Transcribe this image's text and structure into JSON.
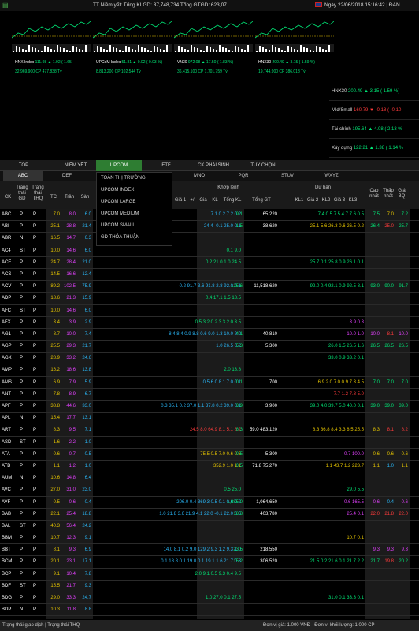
{
  "topbar": {
    "market": "TT Niêm yết: Tổng KLGD: 37,748,734    Tổng GTGD: 623,07",
    "datetime": "Ngày  22/06/2018 15:16:42  |  ĐĂN"
  },
  "indices": [
    {
      "name": "HNX Index",
      "value": "111.98",
      "chg": "▲ 1.92 ( 1.65",
      "stats": "32,969,900 CP 477.838 Tỷ"
    },
    {
      "name": "UPCoM Index",
      "value": "51.81",
      "chg": "▲ 0.02 ( 0.03 %)",
      "stats": "8,813,200 CP 102.544 Tỷ"
    },
    {
      "name": "VN30",
      "value": "972.08",
      "chg": "▲ 17.50 ( 1.83 %)",
      "stats": "36,415,100 CP 1,701.759 Tỷ"
    },
    {
      "name": "HNX30",
      "value": "200.49",
      "chg": "▲ 3.15 ( 1.59 %)",
      "stats": "19,744,900 CP 386.018 Tỷ"
    }
  ],
  "sidepanel": [
    {
      "name": "HNX30",
      "value": "200.49",
      "chg": "▲ 3.15 ( 1.59 %)"
    },
    {
      "name": "Mid/Small",
      "value": "160.79",
      "chg": "▼ -0.18 ( -0.10"
    },
    {
      "name": "Tài chính",
      "value": "195.64",
      "chg": "▲ 4.08 ( 2.13 %"
    },
    {
      "name": "Xây dựng",
      "value": "122.21",
      "chg": "▲ 1.38 ( 1.14 %"
    }
  ],
  "tabs": [
    "TOP",
    "NIÊM YẾT",
    "UPCOM",
    "ETF",
    "CK PHÁI SINH",
    "TÙY CHỌN"
  ],
  "subtabs": [
    "ABC",
    "DEF",
    "GHI",
    "JKL",
    "MNO",
    "PQR",
    "STUV",
    "WXYZ"
  ],
  "dropdown": [
    "TOÀN THỊ TRƯỜNG",
    "UPCOM INDEX",
    "UPCOM LARGE",
    "UPCOM MEDIUM",
    "UPCOM SMALL",
    "GD THỎA THUẬN"
  ],
  "header": {
    "ck": "CK",
    "tt1": "Trạng thái GD",
    "tt2": "Trạng thái THQ",
    "tc": "TC",
    "tran": "Trần",
    "san": "Sàn",
    "gia1": "Giá 1",
    "pm": "+/-",
    "gia": "Giá",
    "kl": "KL",
    "tongkl": "Tổng KL",
    "tonggt": "Tổng GT",
    "khop": "Khớp lệnh",
    "duban": "Dư bán",
    "kl1": "KL1",
    "gia2": "Giá 2",
    "kl2": "KL2",
    "gia3": "Giá 3",
    "kl3": "KL3",
    "cao": "Cao nhất",
    "thap": "Thấp nhất",
    "tb": "Giá BQ"
  },
  "rows": [
    {
      "ck": "ABC",
      "a": "P",
      "b": "P",
      "tc": "7.0",
      "tr": "8.0",
      "sa": "6.0",
      "mid": "7.1   0.2   7.2 0.2",
      "kl": "9.1",
      "gt": "65,220",
      "ask": "7.4  0.5  7.5  4.7  7.6  0.5",
      "hi": "7.5",
      "lo": "7.0",
      "tb": "7.2"
    },
    {
      "ck": "ABI",
      "a": "P",
      "b": "P",
      "tc": "25.1",
      "tr": "28.8",
      "sa": "21.4",
      "mid": "24.4 -0.1 25.0 0.1",
      "kl": "1.5",
      "gt": "38,620",
      "ask": "25.1  5.6 26.3  0.6 26.5  0.2",
      "hi": "26.4",
      "lo": "25.0",
      "tb": "25.7"
    },
    {
      "ck": "ABR",
      "a": "N",
      "b": "P",
      "tc": "16.5",
      "tr": "14.7",
      "sa": "6.3",
      "mid": "",
      "kl": "",
      "gt": "",
      "ask": "",
      "hi": "",
      "lo": "",
      "tb": ""
    },
    {
      "ck": "AC4",
      "a": "ST",
      "b": "P",
      "tc": "10.0",
      "tr": "14.6",
      "sa": "6.0",
      "mid": "0.1  9.0",
      "kl": "",
      "gt": "",
      "ask": "",
      "hi": "",
      "lo": "",
      "tb": ""
    },
    {
      "ck": "ACE",
      "a": "P",
      "b": "P",
      "tc": "24.7",
      "tr": "28.4",
      "sa": "21.0",
      "mid": "0.2 21.0  1.0 24.5",
      "kl": "",
      "gt": "",
      "ask": "25.7  0.1 25.8  0.9 26.1  0.1",
      "hi": "",
      "lo": "",
      "tb": ""
    },
    {
      "ck": "ACS",
      "a": "P",
      "b": "P",
      "tc": "14.5",
      "tr": "16.6",
      "sa": "12.4",
      "mid": "",
      "kl": "",
      "gt": "",
      "ask": "",
      "hi": "",
      "lo": "",
      "tb": ""
    },
    {
      "ck": "ACV",
      "a": "P",
      "b": "P",
      "tc": "89.2",
      "tr": "102.5",
      "sa": "75.9",
      "mid": "0.2 91.7  3.6 91.8  2.8 92.0 0.1",
      "kl": "125.6",
      "gt": "11,518,620",
      "ask": "92.0  0.4 92.1  0.9 92.5  8.1",
      "hi": "93.0",
      "lo": "90.0",
      "tb": "91.7"
    },
    {
      "ck": "ADP",
      "a": "P",
      "b": "P",
      "tc": "18.6",
      "tr": "21.3",
      "sa": "15.9",
      "mid": "0.4 17.1  1.5 18.5",
      "kl": "",
      "gt": "",
      "ask": "",
      "hi": "",
      "lo": "",
      "tb": ""
    },
    {
      "ck": "AFC",
      "a": "ST",
      "b": "P",
      "tc": "10.0",
      "tr": "14.6",
      "sa": "6.0",
      "mid": "",
      "kl": "",
      "gt": "",
      "ask": "",
      "hi": "",
      "lo": "",
      "tb": ""
    },
    {
      "ck": "AFX",
      "a": "P",
      "b": "P",
      "tc": "3.4",
      "tr": "3.9",
      "sa": "2.9",
      "mid": "0.5  3.2  0.2  3.3  2.0  3.5",
      "kl": "",
      "gt": "",
      "ask": "3.9  0.3",
      "hi": "",
      "lo": "",
      "tb": ""
    },
    {
      "ck": "AG1",
      "a": "P",
      "b": "P",
      "tc": "8.7",
      "tr": "10.0",
      "sa": "7.4",
      "mid": "8.4  8.4  0.9  8.8  0.6  9.0  1.3 10.0 2.0",
      "kl": "4.1",
      "gt": "40,810",
      "ask": "10.0  1.0",
      "hi": "10.0",
      "lo": "8.1",
      "tb": "10.0"
    },
    {
      "ck": "AGP",
      "a": "P",
      "b": "P",
      "tc": "25.5",
      "tr": "29.3",
      "sa": "21.7",
      "mid": "1.0 26.5 0.2",
      "kl": "5.3",
      "gt": "5,300",
      "ask": "26.0  1.5 26.5  1.6",
      "hi": "26.5",
      "lo": "26.5",
      "tb": "26.5"
    },
    {
      "ck": "AGX",
      "a": "P",
      "b": "P",
      "tc": "28.9",
      "tr": "33.2",
      "sa": "24.6",
      "mid": "",
      "kl": "",
      "gt": "",
      "ask": "33.0  0.9 33.2  0.1",
      "hi": "",
      "lo": "",
      "tb": ""
    },
    {
      "ck": "AMP",
      "a": "P",
      "b": "P",
      "tc": "16.2",
      "tr": "18.6",
      "sa": "13.8",
      "mid": "2.0 13.8",
      "kl": "",
      "gt": "",
      "ask": "",
      "hi": "",
      "lo": "",
      "tb": ""
    },
    {
      "ck": "AMS",
      "a": "P",
      "b": "P",
      "tc": "6.9",
      "tr": "7.9",
      "sa": "5.9",
      "mid": "0.5  6.0  8.1  7.0 0.1",
      "kl": "0.1",
      "gt": "700",
      "ask": "6.9  2.0  7.0  0.9  7.3  4.5",
      "hi": "7.0",
      "lo": "7.0",
      "tb": "7.0"
    },
    {
      "ck": "ANT",
      "a": "P",
      "b": "P",
      "tc": "7.8",
      "tr": "8.9",
      "sa": "6.7",
      "mid": "",
      "kl": "",
      "gt": "",
      "ask": "7.7  1.2  7.8  5.0",
      "hi": "",
      "lo": "",
      "tb": ""
    },
    {
      "ck": "APF",
      "a": "P",
      "b": "P",
      "tc": "38.8",
      "tr": "44.6",
      "sa": "33.0",
      "mid": "0.3 35.1  0.2 37.0  1.1 37.8  0.2 39.0 0.1",
      "kl": "3.9",
      "gt": "3,900",
      "ask": "39.0  4.0 39.7  5.0 40.0  0.1",
      "hi": "39.0",
      "lo": "39.0",
      "tb": "39.0"
    },
    {
      "ck": "APL",
      "a": "N",
      "b": "P",
      "tc": "15.4",
      "tr": "17.7",
      "sa": "13.1",
      "mid": "",
      "kl": "",
      "gt": "",
      "ask": "",
      "hi": "",
      "lo": "",
      "tb": ""
    },
    {
      "ck": "ART",
      "a": "P",
      "b": "P",
      "tc": "8.3",
      "tr": "9.5",
      "sa": "7.1",
      "mid": "24.5  8.0 64.9  8.1  5.1  8.2",
      "kl": "8.3",
      "gt": "59.0 483,120",
      "ask": "8.3 36.8  8.4  3.3  8.5 25.5",
      "hi": "8.3",
      "lo": "8.1",
      "tb": "8.2"
    },
    {
      "ck": "ASD",
      "a": "ST",
      "b": "P",
      "tc": "1.6",
      "tr": "2.2",
      "sa": "1.0",
      "mid": "",
      "kl": "",
      "gt": "",
      "ask": "",
      "hi": "",
      "lo": "",
      "tb": ""
    },
    {
      "ck": "ATA",
      "a": "P",
      "b": "P",
      "tc": "0.6",
      "tr": "0.7",
      "sa": "0.5",
      "mid": "75.5  0.5  7.0  0.6  0.6",
      "kl": "0.5",
      "gt": "5,300",
      "ask": "0.7 100.0",
      "hi": "0.6",
      "lo": "0.6",
      "tb": "0.6"
    },
    {
      "ck": "ATB",
      "a": "P",
      "b": "P",
      "tc": "1.1",
      "tr": "1.2",
      "sa": "1.0",
      "mid": "352.9  1.0  1.1",
      "kl": "0.5",
      "gt": "71.8  75,270",
      "ask": "1.1  43.7  1.2 223.7",
      "hi": "1.1",
      "lo": "1.0",
      "tb": "1.1"
    },
    {
      "ck": "AUM",
      "a": "N",
      "b": "P",
      "tc": "10.6",
      "tr": "14.8",
      "sa": "6.4",
      "mid": "",
      "kl": "",
      "gt": "",
      "ask": "",
      "hi": "",
      "lo": "",
      "tb": ""
    },
    {
      "ck": "AVC",
      "a": "P",
      "b": "P",
      "tc": "27.0",
      "tr": "31.0",
      "sa": "23.0",
      "mid": "0.5 25.0",
      "kl": "",
      "gt": "",
      "ask": "29.0  5.5",
      "hi": "",
      "lo": "",
      "tb": ""
    },
    {
      "ck": "AVF",
      "a": "P",
      "b": "P",
      "tc": "0.5",
      "tr": "0.6",
      "sa": "0.4",
      "mid": "206.0  0.4 369.3  0.5  0.1  0.6 0.2",
      "kl": "1,885.0",
      "gt": "1,064,650",
      "ask": "0.6 165.5",
      "hi": "0.6",
      "lo": "0.4",
      "tb": "0.6"
    },
    {
      "ck": "BAB",
      "a": "P",
      "b": "P",
      "tc": "22.1",
      "tr": "25.4",
      "sa": "18.8",
      "mid": "1.0 21.8  3.6 21.9  4.1 22.0 -0.1 22.0 6.5",
      "kl": "18.3",
      "gt": "403,780",
      "ask": "25.4  0.1",
      "hi": "22.0",
      "lo": "21.8",
      "tb": "22.0"
    },
    {
      "ck": "BAL",
      "a": "ST",
      "b": "P",
      "tc": "40.3",
      "tr": "56.4",
      "sa": "24.2",
      "mid": "",
      "kl": "",
      "gt": "",
      "ask": "",
      "hi": "",
      "lo": "",
      "tb": ""
    },
    {
      "ck": "BBM",
      "a": "P",
      "b": "P",
      "tc": "10.7",
      "tr": "12.3",
      "sa": "9.1",
      "mid": "",
      "kl": "",
      "gt": "",
      "ask": "10.7  0.1",
      "hi": "",
      "lo": "",
      "tb": ""
    },
    {
      "ck": "BBT",
      "a": "P",
      "b": "P",
      "tc": "8.1",
      "tr": "9.3",
      "sa": "6.9",
      "mid": "14.0  8.1  0.2  9.0 129.2  9.3  1.2  9.3 1.0",
      "kl": "23.5",
      "gt": "218,550",
      "ask": "",
      "hi": "9.3",
      "lo": "9.3",
      "tb": "9.3"
    },
    {
      "ck": "BCM",
      "a": "P",
      "b": "P",
      "tc": "20.1",
      "tr": "23.1",
      "sa": "17.1",
      "mid": "0.1 18.8  0.1 19.0  0.1 19.1  1.6 21.7 0.3",
      "kl": "15.2",
      "gt": "306,520",
      "ask": "21.5  0.2 21.6  0.1 21.7  2.2",
      "hi": "21.7",
      "lo": "19.8",
      "tb": "20.2"
    },
    {
      "ck": "BCP",
      "a": "P",
      "b": "P",
      "tc": "9.1",
      "tr": "10.4",
      "sa": "7.8",
      "mid": "2.0  9.1  0.5  9.3  0.4  9.5",
      "kl": "",
      "gt": "",
      "ask": "",
      "hi": "",
      "lo": "",
      "tb": ""
    },
    {
      "ck": "BDF",
      "a": "ST",
      "b": "P",
      "tc": "15.5",
      "tr": "21.7",
      "sa": "9.3",
      "mid": "",
      "kl": "",
      "gt": "",
      "ask": "",
      "hi": "",
      "lo": "",
      "tb": ""
    },
    {
      "ck": "BDG",
      "a": "P",
      "b": "P",
      "tc": "29.0",
      "tr": "33.3",
      "sa": "24.7",
      "mid": "1.0 27.0  0.1 27.5",
      "kl": "",
      "gt": "",
      "ask": "31.0  0.1 33.3  0.1",
      "hi": "",
      "lo": "",
      "tb": ""
    },
    {
      "ck": "BDP",
      "a": "N",
      "b": "P",
      "tc": "10.3",
      "tr": "11.8",
      "sa": "8.8",
      "mid": "",
      "kl": "",
      "gt": "",
      "ask": "",
      "hi": "",
      "lo": "",
      "tb": ""
    },
    {
      "ck": "BDT",
      "a": "P",
      "b": "P",
      "tc": "10.7",
      "tr": "12.3",
      "sa": "9.1",
      "mid": "4.0  9.2  0.2 10.0  10.5  1.5",
      "kl": "15,750",
      "gt": "",
      "ask": "10.5  2.5  11.5  8.7  12.0  0.7",
      "hi": "10.5",
      "lo": "10.5",
      "tb": "10.5"
    }
  ],
  "footer": {
    "left": "Trạng thái giao dịch  |  Trạng thái THQ",
    "right": "Đơn vị giá: 1.000 VNĐ  ·  Đơn vị khối lượng: 1.000 CP"
  },
  "colors": {
    "green": "#00e676",
    "red": "#ff3b3b",
    "ref": "#e5c400",
    "ceil": "#e040fb",
    "floor": "#29b6f6",
    "tab": "#2e7d32"
  }
}
